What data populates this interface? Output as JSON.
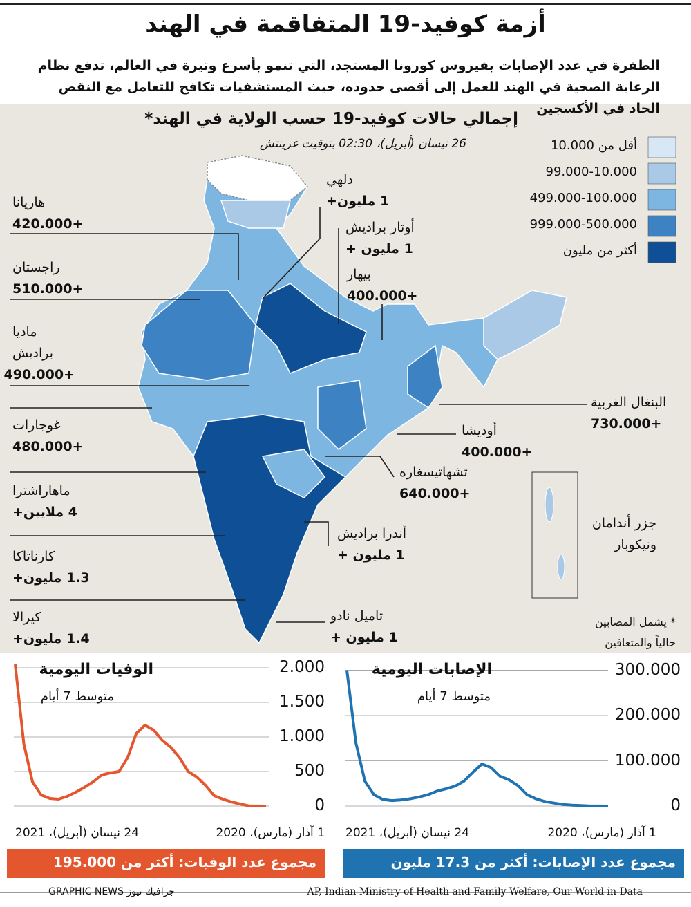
{
  "header": {
    "title": "أزمة كوفيد-19 المتفاقمة في الهند",
    "subtitle": "الطفرة في عدد الإصابات بفيروس كورونا المستجد، التي تنمو بأسرع وتيرة في العالم، تدفع نظام الرعاية الصحية في الهند للعمل إلى أقصى حدوده، حيث المستشفيات تكافح للتعامل مع النقص الحاد في الأكسجين"
  },
  "map": {
    "title": "إجمالي حالات كوفيد-19 حسب الولاية في الهند*",
    "date": "26 نيسان (أبريل)، 02:30 بتوقيت غرينتش",
    "legend": [
      {
        "label": "أقل من 10.000",
        "color": "#d7e7f5"
      },
      {
        "label": "99.000-10.000",
        "color": "#a9c9e6"
      },
      {
        "label": "499.000-100.000",
        "color": "#7cb6e1"
      },
      {
        "label": "999.000-500.000",
        "color": "#3d82c2"
      },
      {
        "label": "أكثر من مليون",
        "color": "#0e4f95"
      }
    ],
    "states": [
      {
        "name": "هاريانا",
        "value": "+420.000"
      },
      {
        "name": "راجستان",
        "value": "+510.000"
      },
      {
        "name": "ماديا براديش",
        "value": "+490.000"
      },
      {
        "name": "غوجارات",
        "value": "+480.000"
      },
      {
        "name": "ماهاراشترا",
        "value": "4 ملايين+"
      },
      {
        "name": "كارناتاكا",
        "value": "1.3 مليون+"
      },
      {
        "name": "كيرالا",
        "value": "1.4 مليون+"
      },
      {
        "name": "دلهي",
        "value": "1 مليون+"
      },
      {
        "name": "أوتار براديش",
        "value": "1 مليون +"
      },
      {
        "name": "بيهار",
        "value": "+400.000"
      },
      {
        "name": "البنغال الغربية",
        "value": "+730.000"
      },
      {
        "name": "أوديشا",
        "value": "+400.000"
      },
      {
        "name": "تشهاتيسغاره",
        "value": "+640.000"
      },
      {
        "name": "أندرا براديش",
        "value": "1 مليون +"
      },
      {
        "name": "تاميل نادو",
        "value": "1 مليون +"
      }
    ],
    "islands": "جزر أندامان ونيكوبار",
    "note": "* يشمل المصابين حالياً والمتعافين"
  },
  "chart_data": [
    {
      "type": "line",
      "title": "الوفيات اليومية",
      "subtitle": "متوسط 7 أيام",
      "categories": [
        "1 آذار (مارس)، 2020",
        null,
        null,
        null,
        null,
        null,
        null,
        null,
        null,
        null,
        null,
        null,
        null,
        null,
        null,
        null,
        null,
        null,
        null,
        null,
        null,
        null,
        null,
        null,
        null,
        null,
        null,
        null,
        null,
        "24 نيسان (أبريل)، 2021"
      ],
      "values": [
        0,
        1,
        3,
        30,
        60,
        100,
        150,
        300,
        420,
        500,
        700,
        850,
        950,
        1100,
        1170,
        1050,
        700,
        500,
        480,
        450,
        350,
        270,
        200,
        140,
        100,
        110,
        160,
        350,
        900,
        2050
      ],
      "color": "#e4572e",
      "ylim": [
        0,
        2050
      ],
      "yticks": [
        0,
        500,
        {
          "value": 1000,
          "label": "1.000"
        },
        {
          "value": 1500,
          "label": "1.500"
        },
        {
          "value": 2000,
          "label": "2.000"
        }
      ],
      "total": "مجموع عدد الوفيات: أكثر من 195.000"
    },
    {
      "type": "line",
      "title": "الإصابات اليومية",
      "subtitle": "متوسط 7 أيام",
      "categories": [
        "1 آذار (مارس)، 2020",
        null,
        null,
        null,
        null,
        null,
        null,
        null,
        null,
        null,
        null,
        null,
        null,
        null,
        null,
        null,
        null,
        null,
        null,
        null,
        null,
        null,
        null,
        null,
        null,
        null,
        null,
        null,
        null,
        "24 نيسان (أبريل)، 2021"
      ],
      "values": [
        0,
        80,
        150,
        1000,
        2000,
        3500,
        6500,
        10000,
        16000,
        25000,
        45000,
        58000,
        66000,
        85000,
        93000,
        75000,
        55000,
        44000,
        38000,
        33000,
        25000,
        20000,
        16000,
        13500,
        12000,
        14500,
        25000,
        55000,
        140000,
        300000
      ],
      "color": "#1f73b0",
      "ylim": [
        0,
        310000
      ],
      "yticks": [
        0,
        {
          "value": 100000,
          "label": "100.000"
        },
        {
          "value": 200000,
          "label": "200.000"
        },
        {
          "value": 300000,
          "label": "300.000"
        }
      ],
      "total": "مجموع عدد الإصابات: أكثر من 17.3 مليون"
    }
  ],
  "footer": {
    "sources": "AP, Indian Ministry of Health and Family Welfare, Our World in Data",
    "credit": "GRAPHIC NEWS جرافيك نيوز"
  }
}
